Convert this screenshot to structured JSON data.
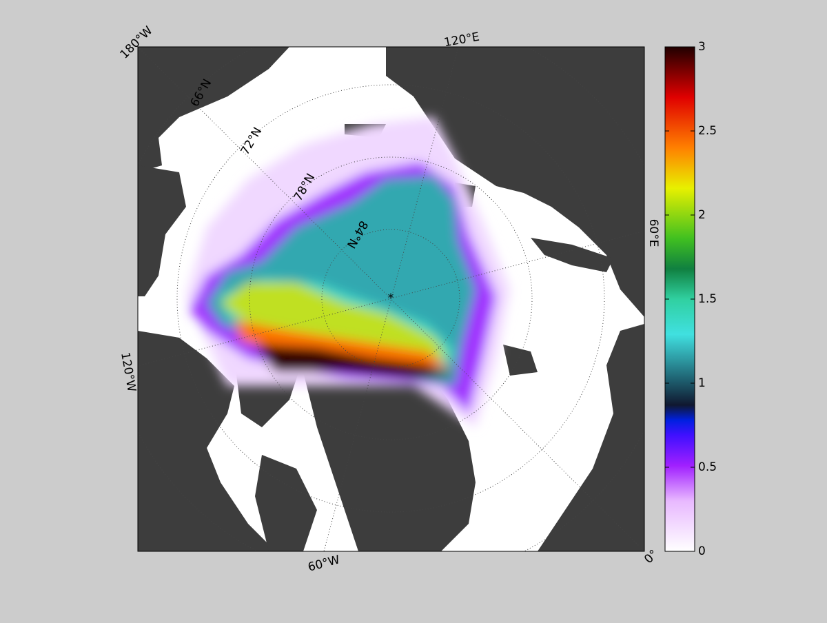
{
  "map": {
    "meridian_labels": [
      "180°W",
      "120°E",
      "60°E",
      "0°",
      "60°W",
      "120°W"
    ],
    "parallel_labels": [
      "66°N",
      "72°N",
      "78°N",
      "84°N"
    ]
  },
  "colorbar": {
    "lim": [
      0,
      3
    ],
    "ticks": [
      0,
      0.5,
      1,
      1.5,
      2,
      2.5,
      3
    ]
  }
}
